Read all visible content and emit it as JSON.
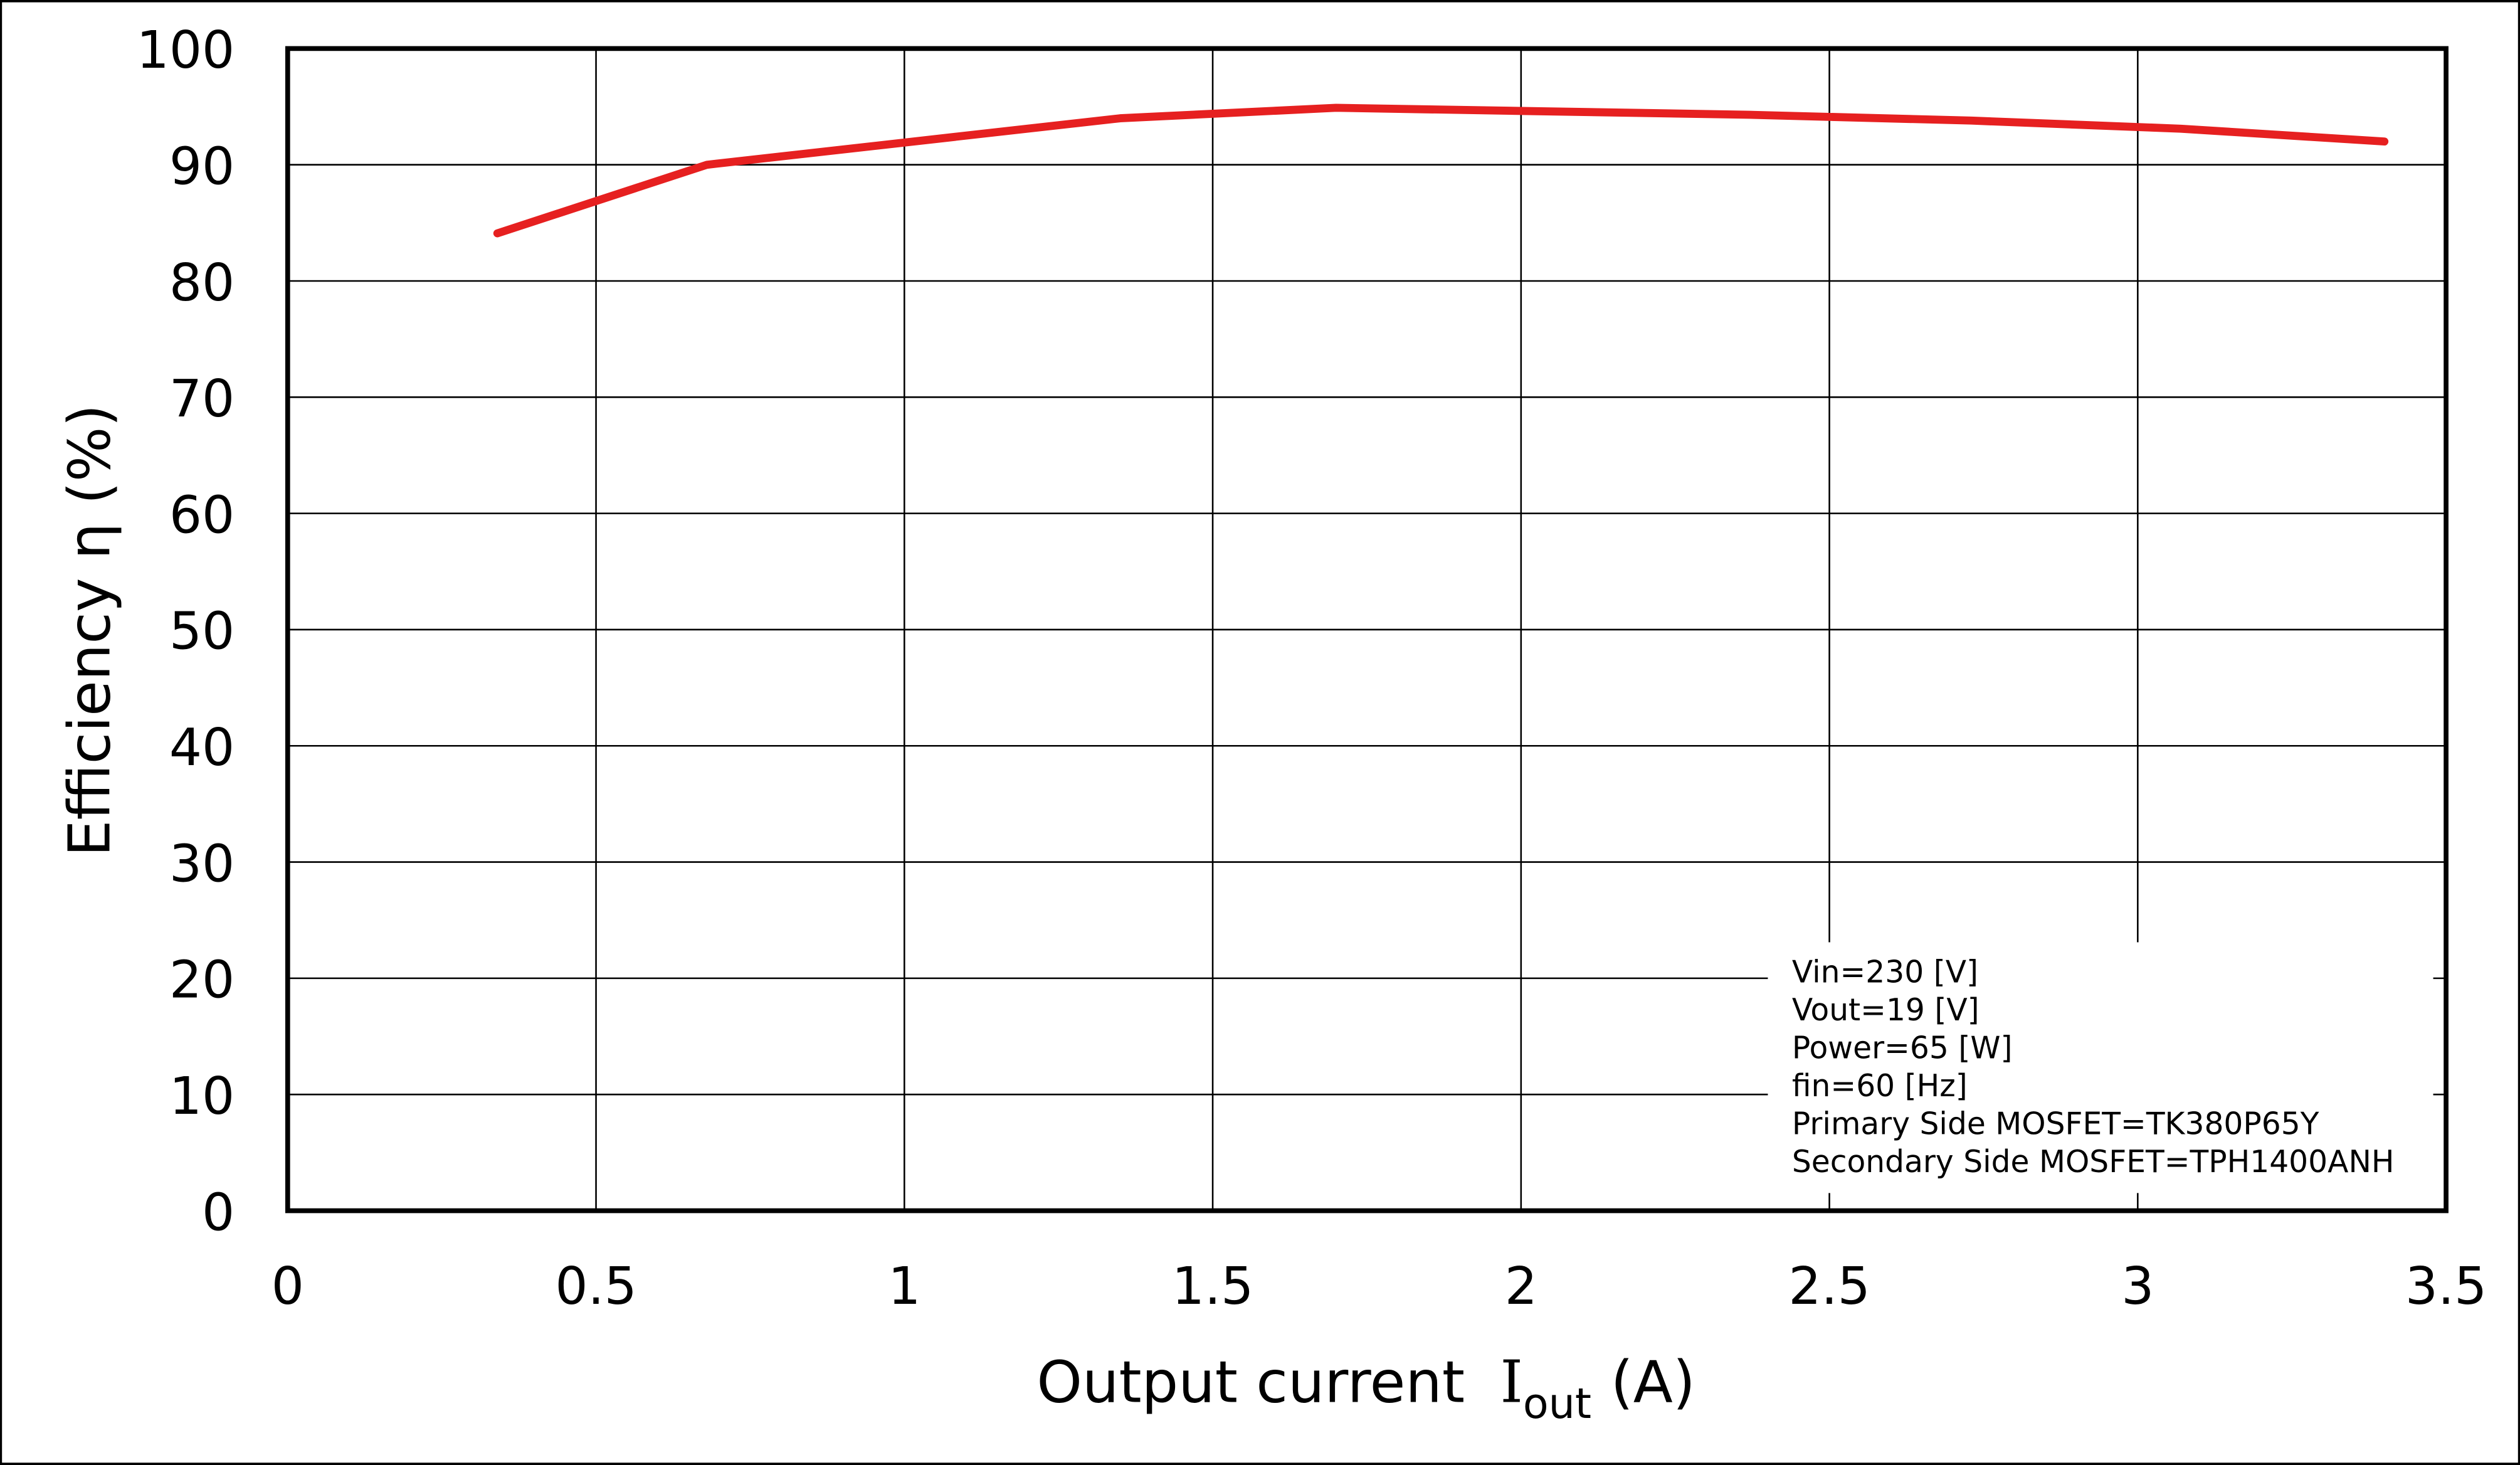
{
  "chart_data": {
    "type": "line",
    "title": "",
    "xlabel": "Output current",
    "xlabel_symbol": "I",
    "xlabel_subscript": "out",
    "xlabel_unit": "(A)",
    "ylabel": "Efficiency  η (%)",
    "xlim": [
      0,
      3.5
    ],
    "ylim": [
      0,
      100
    ],
    "xticks": [
      "0",
      "0.5",
      "1",
      "1.5",
      "2",
      "2.5",
      "3",
      "3.5"
    ],
    "yticks": [
      "0",
      "10",
      "20",
      "30",
      "40",
      "50",
      "60",
      "70",
      "80",
      "90",
      "100"
    ],
    "grid": true,
    "series": [
      {
        "name": "Efficiency",
        "color": "#e62020",
        "x": [
          0.34,
          0.68,
          1.35,
          1.7,
          2.37,
          2.73,
          3.07,
          3.4
        ],
        "y": [
          84.1,
          90.0,
          94.0,
          94.9,
          94.3,
          93.8,
          93.1,
          92.0
        ]
      }
    ],
    "annotation": [
      "Vin=230 [V]",
      "Vout=19 [V]",
      "Power=65 [W]",
      "fin=60 [Hz]",
      "Primary Side MOSFET=TK380P65Y",
      "Secondary Side MOSFET=TPH1400ANH"
    ]
  }
}
